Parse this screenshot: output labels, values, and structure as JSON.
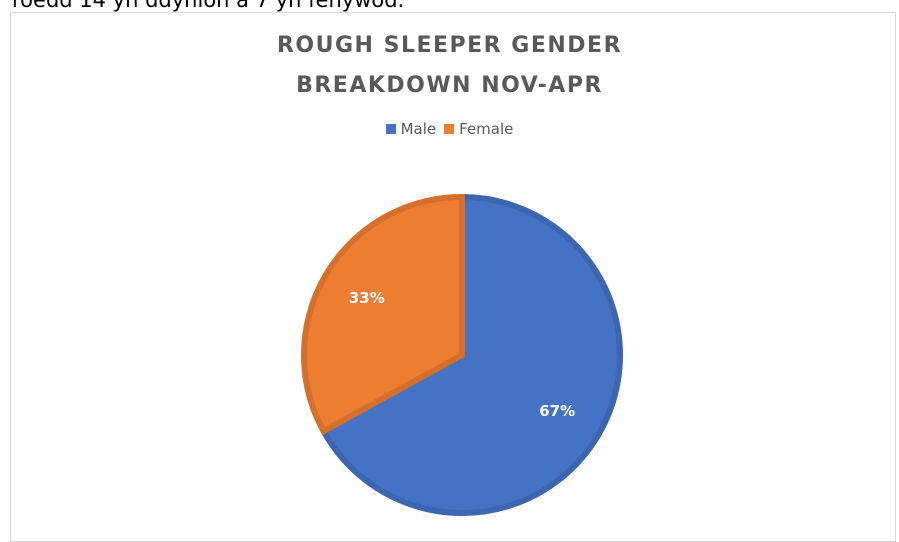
{
  "header_text": "roedd 14 yn ddynion a 7 yn fenywod.",
  "chart_data": {
    "type": "pie",
    "title": "ROUGH SLEEPER GENDER BREAKDOWN NOV-APR",
    "categories": [
      "Male",
      "Female"
    ],
    "values": [
      67,
      33
    ],
    "value_labels": [
      "67%",
      "33%"
    ],
    "colors": [
      "#4472c4",
      "#ed7d31"
    ],
    "edge_colors": [
      "#3d66b1",
      "#d5702b"
    ],
    "legend": "top"
  }
}
